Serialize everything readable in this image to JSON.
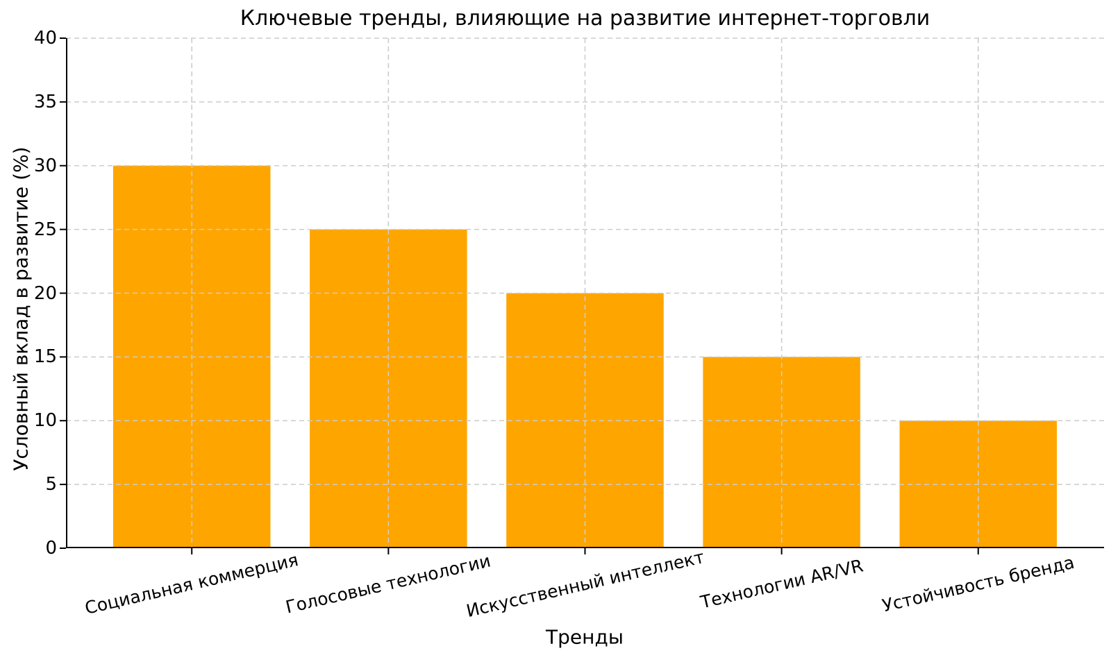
{
  "chart_data": {
    "type": "bar",
    "title": "Ключевые тренды, влияющие на развитие интернет-торговли",
    "xlabel": "Тренды",
    "ylabel": "Условный вклад в развитие (%)",
    "categories": [
      "Социальная коммерция",
      "Голосовые технологии",
      "Искусственный интеллект",
      "Технологии AR/VR",
      "Устойчивость бренда"
    ],
    "values": [
      30,
      25,
      20,
      15,
      10
    ],
    "yticks": [
      0,
      5,
      10,
      15,
      20,
      25,
      30,
      35,
      40
    ],
    "ylim": [
      0,
      40
    ],
    "bar_color": "#ffa500",
    "grid_color": "#cccccc",
    "axis_color": "#000000",
    "text_color": "#000000",
    "xtick_rotation_deg": -13,
    "grid_style": "dashed, horizontal and vertical, drawn above bars",
    "legend": "none"
  }
}
